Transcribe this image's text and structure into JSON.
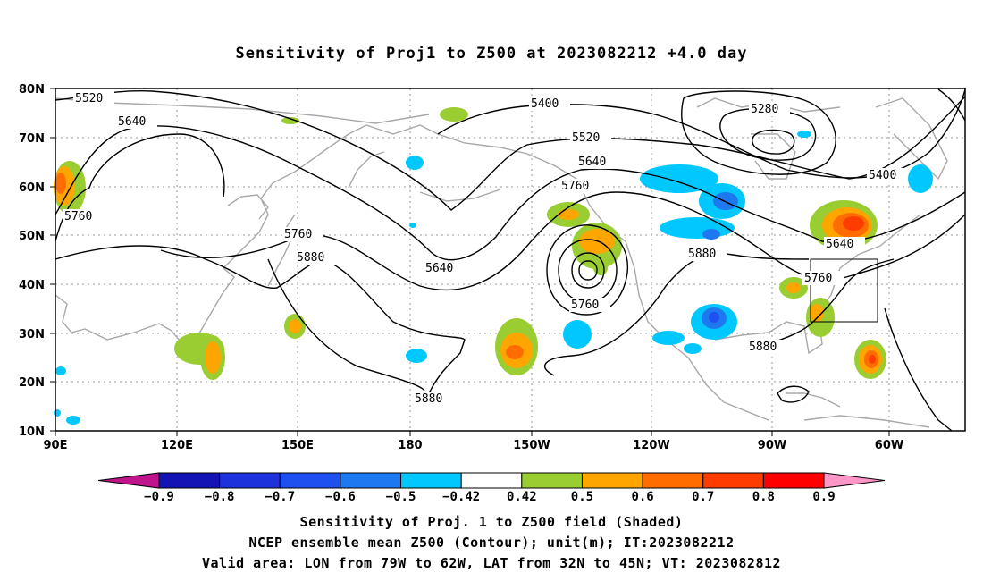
{
  "title": "Sensitivity of Proj1 to Z500 at 2023082212 +4.0 day",
  "lat_labels": [
    "80N",
    "70N",
    "60N",
    "50N",
    "40N",
    "30N",
    "20N",
    "10N"
  ],
  "lon_labels": [
    "90E",
    "120E",
    "150E",
    "180",
    "150W",
    "120W",
    "90W",
    "60W"
  ],
  "contour_labels": [
    {
      "text": "5520"
    },
    {
      "text": "5640"
    },
    {
      "text": "5760"
    },
    {
      "text": "5400"
    },
    {
      "text": "5280"
    },
    {
      "text": "5520"
    },
    {
      "text": "5640"
    },
    {
      "text": "5760"
    },
    {
      "text": "5760"
    },
    {
      "text": "5880"
    },
    {
      "text": "5640"
    },
    {
      "text": "5760"
    },
    {
      "text": "5880"
    },
    {
      "text": "5880"
    },
    {
      "text": "5400"
    },
    {
      "text": "5640"
    },
    {
      "text": "5760"
    },
    {
      "text": "5880"
    }
  ],
  "colorbar": {
    "labels": [
      "-0.9",
      "-0.8",
      "-0.7",
      "-0.6",
      "-0.5",
      "-0.42",
      "0.42",
      "0.5",
      "0.6",
      "0.7",
      "0.8",
      "0.9"
    ],
    "colors": [
      "#c0148c",
      "#1414b4",
      "#1e32dc",
      "#1e50f0",
      "#1e78f0",
      "#00c8ff",
      "#ffffff",
      "#9acd32",
      "#ffa500",
      "#ff6c00",
      "#ff3c00",
      "#ff0000",
      "#ff96c8"
    ]
  },
  "captions": [
    "Sensitivity of Proj. 1 to Z500 field (Shaded)",
    "NCEP ensemble mean Z500 (Contour); unit(m); IT:2023082212",
    "Valid area: LON from 79W to 62W, LAT from 32N to 45N; VT: 2023082812"
  ]
}
